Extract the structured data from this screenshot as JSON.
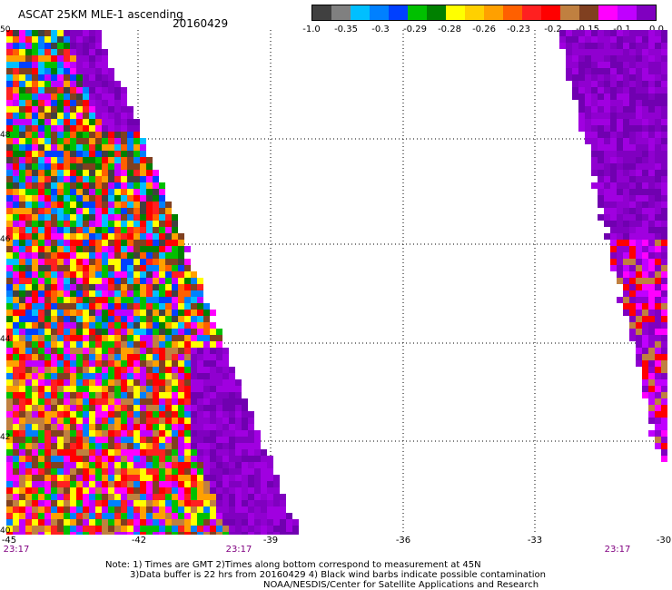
{
  "title": "ASCAT 25KM MLE-1 ascending",
  "date": "20160429",
  "colorbar": {
    "labels": [
      "-1.0",
      "-0.35",
      "-0.3",
      "-0.29",
      "-0.28",
      "-0.26",
      "-0.23",
      "-0.2",
      "-0.15",
      "-0.1",
      "0.0"
    ],
    "colors": [
      "#404040",
      "#808080",
      "#00bfff",
      "#0080ff",
      "#0040ff",
      "#00c000",
      "#008000",
      "#ffff00",
      "#ffd000",
      "#ffa000",
      "#ff6000",
      "#ff2020",
      "#ff0000",
      "#c08040",
      "#804020",
      "#ff00ff",
      "#c000ff",
      "#8000c0"
    ]
  },
  "map": {
    "lat_labels": [
      "50",
      "48",
      "46",
      "44",
      "42",
      "40"
    ],
    "lon_labels": [
      "-45",
      "-42",
      "-39",
      "-36",
      "-33",
      "-30"
    ],
    "time_labels": [
      "23:17",
      "23:17",
      "23:17"
    ]
  },
  "notes": {
    "line1": "Note: 1) Times are GMT 2)Times along bottom correspond to measurement at 45N",
    "line2": "3)Data buffer is 22 hrs from 20160429 4) Black wind barbs indicate possible contamination",
    "line3": "NOAA/NESDIS/Center for Satellite Applications and Research"
  }
}
